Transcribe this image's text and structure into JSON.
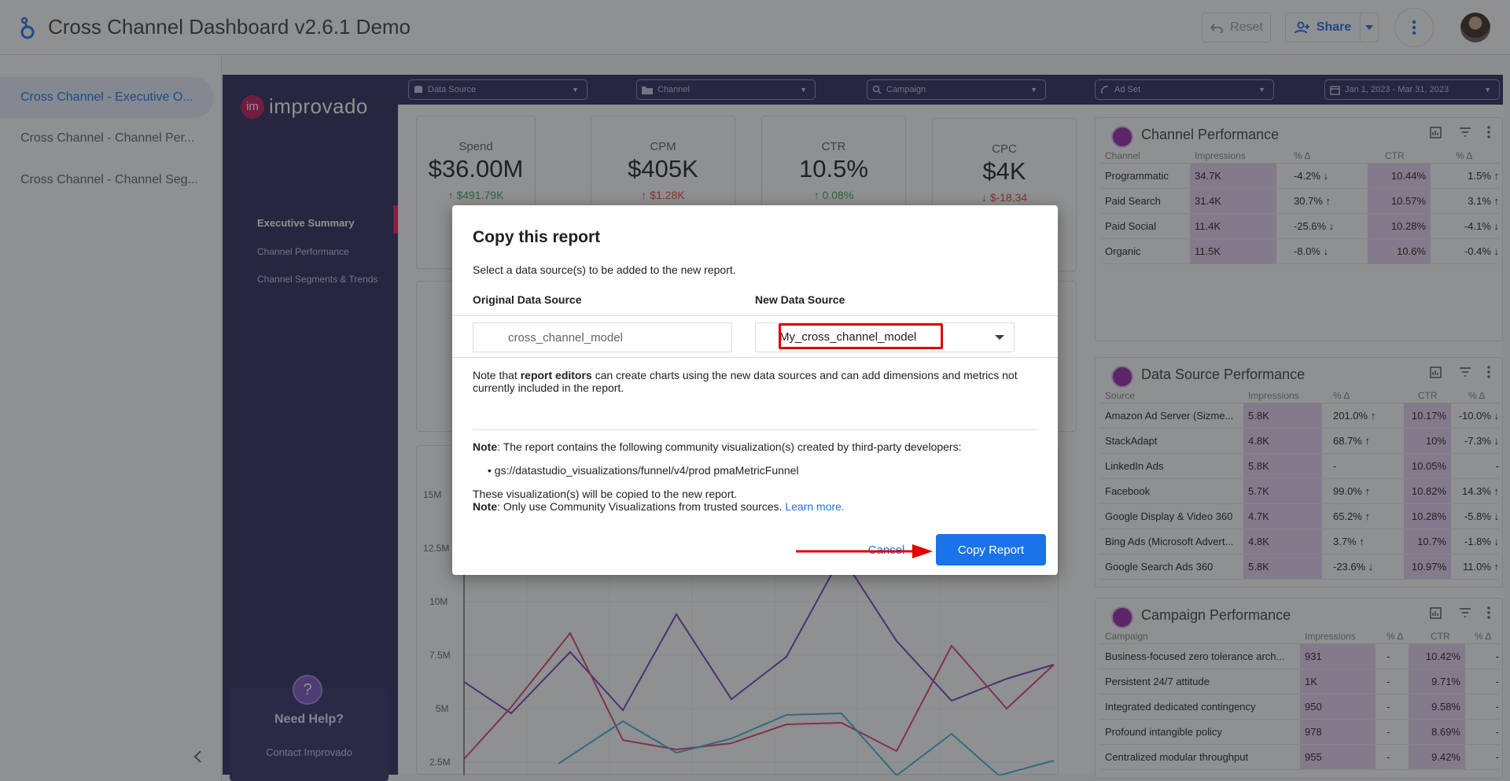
{
  "app": {
    "title": "Cross Channel Dashboard v2.6.1 Demo",
    "reset_label": "Reset",
    "share_label": "Share"
  },
  "pages": [
    {
      "label": "Cross Channel - Executive O..."
    },
    {
      "label": "Cross Channel - Channel Per..."
    },
    {
      "label": "Cross Channel - Channel Seg..."
    }
  ],
  "report": {
    "brand_badge": "im",
    "brand_name": "improvado",
    "nav": [
      {
        "label": "Executive Summary"
      },
      {
        "label": "Channel Performance"
      },
      {
        "label": "Channel Segments & Trends"
      }
    ],
    "help_title": "Need Help?",
    "help_link": "Contact Improvado",
    "filters": [
      {
        "label": "Data Source"
      },
      {
        "label": "Channel"
      },
      {
        "label": "Campaign"
      },
      {
        "label": "Ad Set"
      },
      {
        "label": "Jan 1, 2023 - Mar 31, 2023"
      }
    ],
    "kpis": [
      {
        "label": "Spend",
        "value": "$36.00M",
        "delta": "↑ $491.79K"
      },
      {
        "label": "CPM",
        "value": "$405K",
        "delta": "↑ $1.28K"
      },
      {
        "label": "CTR",
        "value": "10.5%",
        "delta": "↑ 0.08%"
      },
      {
        "label": "CPC",
        "value": "$4K",
        "delta": "↓ $-18.34"
      }
    ],
    "chart_y_ticks": [
      "15M",
      "12.5M",
      "10M",
      "7.5M",
      "5M",
      "2.5M"
    ]
  },
  "channel_table": {
    "title": "Channel Performance",
    "headers": [
      "Channel",
      "Impressions",
      "% Δ",
      "CTR",
      "% Δ"
    ],
    "rows": [
      [
        "Programmatic",
        "34.7K",
        "-4.2% ↓",
        "10.44%",
        "1.5% ↑"
      ],
      [
        "Paid Search",
        "31.4K",
        "30.7% ↑",
        "10.57%",
        "3.1% ↑"
      ],
      [
        "Paid Social",
        "11.4K",
        "-25.6% ↓",
        "10.28%",
        "-4.1% ↓"
      ],
      [
        "Organic",
        "11.5K",
        "-8.0% ↓",
        "10.6%",
        "-0.4% ↓"
      ]
    ]
  },
  "source_table": {
    "title": "Data Source Performance",
    "headers": [
      "Source",
      "Impressions",
      "% Δ",
      "CTR",
      "% Δ"
    ],
    "rows": [
      [
        "Amazon Ad Server (Sizme...",
        "5.8K",
        "201.0% ↑",
        "10.17%",
        "-10.0% ↓"
      ],
      [
        "StackAdapt",
        "4.8K",
        "68.7% ↑",
        "10%",
        "-7.3% ↓"
      ],
      [
        "LinkedIn Ads",
        "5.8K",
        "-",
        "10.05%",
        "-"
      ],
      [
        "Facebook",
        "5.7K",
        "99.0% ↑",
        "10.82%",
        "14.3% ↑"
      ],
      [
        "Google Display & Video 360",
        "4.7K",
        "65.2% ↑",
        "10.28%",
        "-5.8% ↓"
      ],
      [
        "Bing Ads (Microsoft Advert...",
        "4.8K",
        "3.7% ↑",
        "10.7%",
        "-1.8% ↓"
      ],
      [
        "Google Search Ads 360",
        "5.8K",
        "-23.6% ↓",
        "10.97%",
        "11.0% ↑"
      ]
    ]
  },
  "campaign_table": {
    "title": "Campaign Performance",
    "headers": [
      "Campaign",
      "Impressions",
      "% Δ",
      "CTR",
      "% Δ"
    ],
    "rows": [
      [
        "Business-focused zero tolerance arch...",
        "931",
        "-",
        "10.42%",
        "-"
      ],
      [
        "Persistent 24/7 attitude",
        "1K",
        "-",
        "9.71%",
        "-"
      ],
      [
        "Integrated dedicated contingency",
        "950",
        "-",
        "9.58%",
        "-"
      ],
      [
        "Profound intangible policy",
        "978",
        "-",
        "8.69%",
        "-"
      ],
      [
        "Centralized modular throughput",
        "955",
        "-",
        "9.42%",
        "-"
      ]
    ]
  },
  "dialog": {
    "title": "Copy this report",
    "subtitle": "Select a data source(s) to be added to the new report.",
    "col_original": "Original Data Source",
    "col_new": "New Data Source",
    "original_value": "cross_channel_model",
    "new_value": "My_cross_channel_model",
    "note_prefix": "Note that ",
    "note_bold": "report editors",
    "note_rest": " can create charts using the new data sources and can add dimensions and metrics not currently included in the report.",
    "community_note_label": "Note",
    "community_note": ": The report contains the following community visualization(s) created by third-party developers:",
    "community_item": "gs://datastudio_visualizations/funnel/v4/prod pmaMetricFunnel",
    "copied_line": "These visualization(s) will be copied to the new report.",
    "trusted_label": "Note",
    "trusted_text": ": Only use Community Visualizations from trusted sources. ",
    "learn_more": "Learn more.",
    "cancel_label": "Cancel",
    "copy_label": "Copy Report"
  },
  "colors": {
    "accent": "#1a73e8",
    "report_sidebar": "#2b2a5a",
    "highlight_red": "#e00000"
  }
}
